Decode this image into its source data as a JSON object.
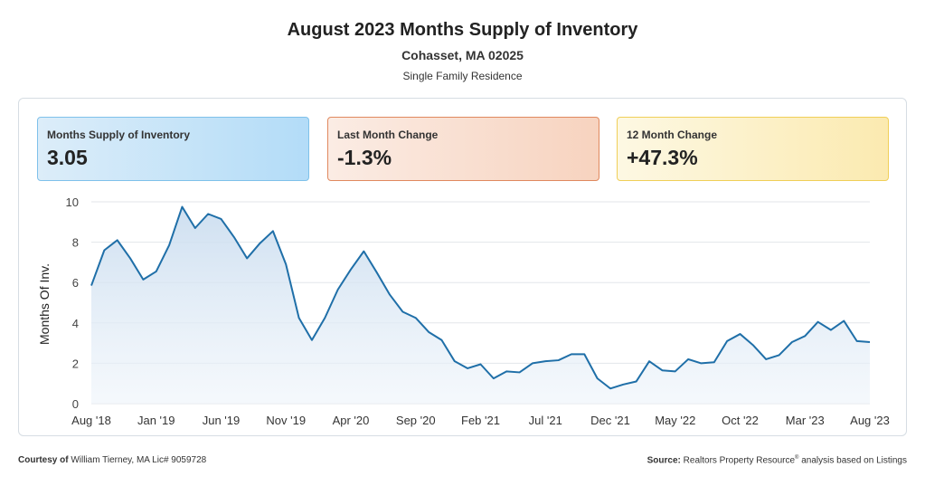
{
  "header": {
    "title": "August 2023 Months Supply of Inventory",
    "subtitle": "Cohasset, MA 02025",
    "property_type": "Single Family Residence"
  },
  "cards": [
    {
      "label": "Months Supply of Inventory",
      "value": "3.05"
    },
    {
      "label": "Last Month Change",
      "value": "-1.3%"
    },
    {
      "label": "12 Month Change",
      "value": "+47.3%"
    }
  ],
  "footer": {
    "courtesy_label": "Courtesy of",
    "courtesy_text": "William Tierney, MA Lic# 9059728",
    "source_label": "Source:",
    "source_text_1": "Realtors Property Resource",
    "source_sup": "®",
    "source_text_2": " analysis based on Listings"
  },
  "colors": {
    "line": "#1f6fa8",
    "grid": "#e3e6ea"
  },
  "chart_data": {
    "type": "area",
    "title": "",
    "xlabel": "",
    "ylabel": "Months Of Inv.",
    "ylim": [
      0,
      10
    ],
    "yticks": [
      0,
      2,
      4,
      6,
      8,
      10
    ],
    "grid": true,
    "x_tick_labels": [
      "Aug '18",
      "Jan '19",
      "Jun '19",
      "Nov '19",
      "Apr '20",
      "Sep '20",
      "Feb '21",
      "Jul '21",
      "Dec '21",
      "May '22",
      "Oct '22",
      "Mar '23",
      "Aug '23"
    ],
    "x_tick_every": 5,
    "series": [
      {
        "values": [
          5.85,
          7.6,
          8.1,
          7.2,
          6.15,
          6.55,
          7.85,
          9.75,
          8.7,
          9.4,
          9.15,
          8.25,
          7.2,
          7.95,
          8.55,
          6.9,
          4.25,
          3.15,
          4.25,
          5.65,
          6.65,
          7.55,
          6.5,
          5.4,
          4.55,
          4.25,
          3.55,
          3.15,
          2.1,
          1.75,
          1.95,
          1.25,
          1.6,
          1.55,
          2.0,
          2.1,
          2.15,
          2.45,
          2.45,
          1.25,
          0.75,
          0.95,
          1.1,
          2.1,
          1.65,
          1.6,
          2.2,
          2.0,
          2.05,
          3.1,
          3.45,
          2.9,
          2.2,
          2.4,
          3.05,
          3.35,
          4.05,
          3.65,
          4.1,
          3.1,
          3.05
        ]
      }
    ]
  }
}
